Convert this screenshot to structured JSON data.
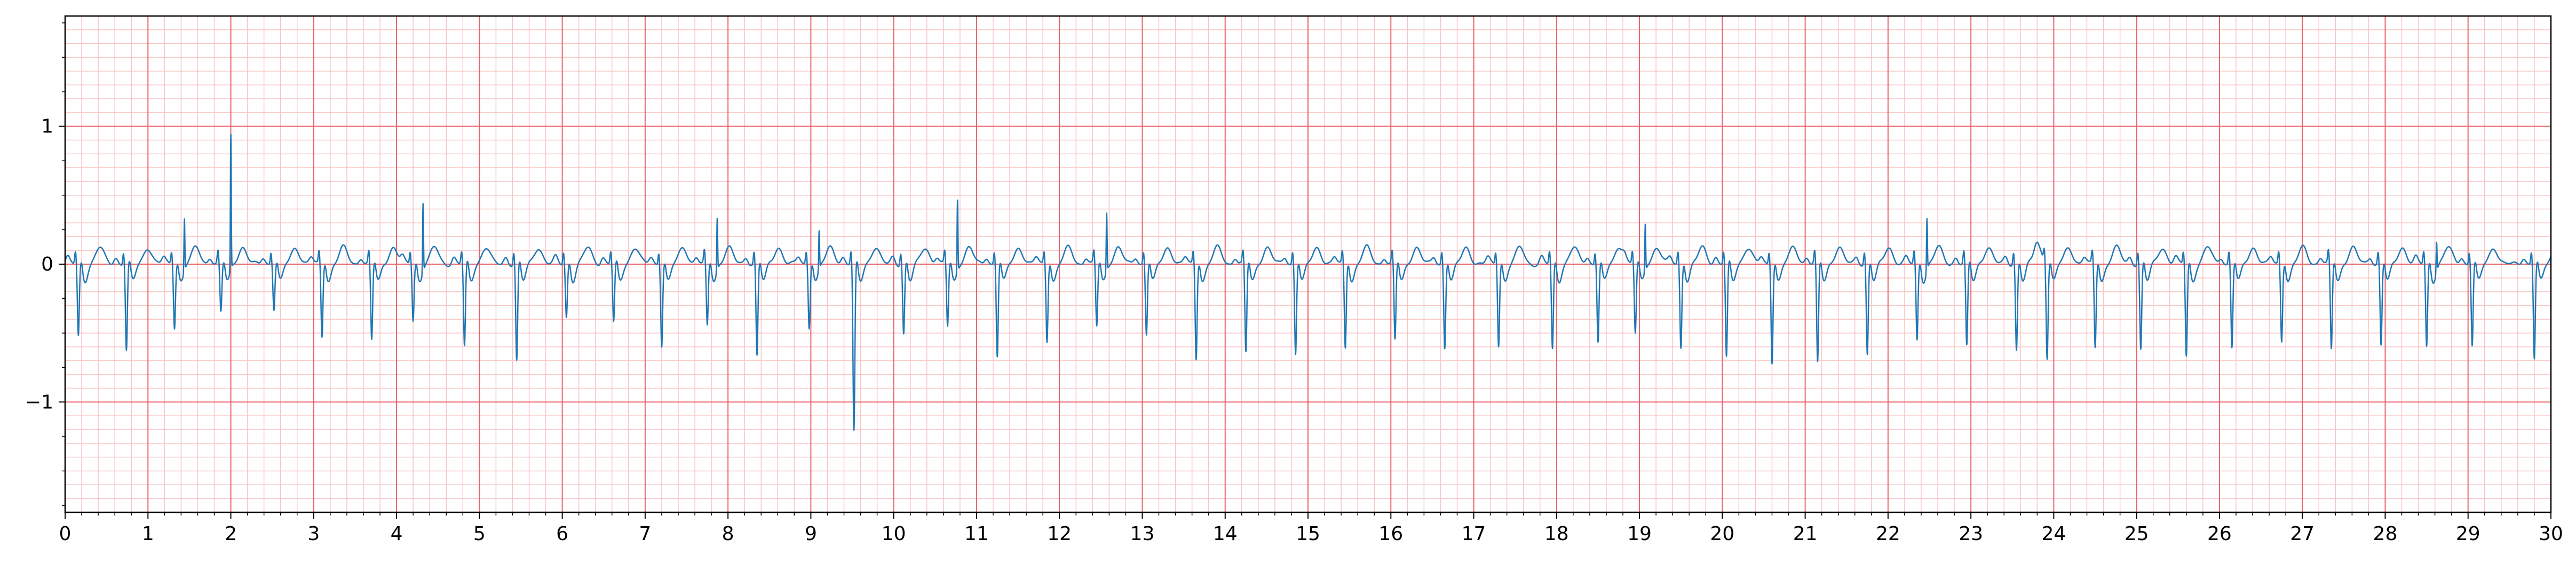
{
  "chart_data": {
    "type": "line",
    "title": "",
    "xlabel": "",
    "ylabel": "",
    "xlim": [
      0,
      30
    ],
    "ylim": [
      -1.8,
      1.8
    ],
    "x_ticks": [
      0,
      1,
      2,
      3,
      4,
      5,
      6,
      7,
      8,
      9,
      10,
      11,
      12,
      13,
      14,
      15,
      16,
      17,
      18,
      19,
      20,
      21,
      22,
      23,
      24,
      25,
      26,
      27,
      28,
      29,
      30
    ],
    "x_tick_labels": [
      "0",
      "1",
      "2",
      "3",
      "4",
      "5",
      "6",
      "7",
      "8",
      "9",
      "10",
      "11",
      "12",
      "13",
      "14",
      "15",
      "16",
      "17",
      "18",
      "19",
      "20",
      "21",
      "22",
      "23",
      "24",
      "25",
      "26",
      "27",
      "28",
      "29",
      "30"
    ],
    "y_ticks": [
      -1,
      0,
      1
    ],
    "y_tick_labels": [
      "−1",
      "0",
      "1"
    ],
    "grid": {
      "major": true,
      "minor": true,
      "major_step_x": 1,
      "minor_step_x": 0.2,
      "major_step_y": 1,
      "minor_step_y": 0.1
    },
    "legend": "none",
    "colors": {
      "trace": "#1f77b4",
      "major_grid": "#e8636b",
      "minor_grid": "#f9c4c4",
      "axes": "#000000"
    },
    "series": [
      {
        "beats": [
          {
            "t": 0.16,
            "amp": -0.52
          },
          {
            "t": 0.74,
            "amp": -0.62
          },
          {
            "t": 1.32,
            "amp": -0.45,
            "spike": 0.38
          },
          {
            "t": 1.88,
            "amp": -0.35,
            "spike": 0.98
          },
          {
            "t": 2.52,
            "amp": -0.32
          },
          {
            "t": 3.1,
            "amp": -0.52
          },
          {
            "t": 3.7,
            "amp": -0.55
          },
          {
            "t": 4.2,
            "amp": -0.4,
            "spike": 0.5
          },
          {
            "t": 4.82,
            "amp": -0.6
          },
          {
            "t": 5.45,
            "amp": -0.7
          },
          {
            "t": 6.05,
            "amp": -0.38
          },
          {
            "t": 6.62,
            "amp": -0.42
          },
          {
            "t": 7.2,
            "amp": -0.58
          },
          {
            "t": 7.75,
            "amp": -0.45,
            "spike": 0.38
          },
          {
            "t": 8.35,
            "amp": -0.66
          },
          {
            "t": 8.98,
            "amp": -0.45,
            "spike": 0.28
          },
          {
            "t": 9.52,
            "amp": -1.22
          },
          {
            "t": 10.12,
            "amp": -0.5
          },
          {
            "t": 10.65,
            "amp": -0.45,
            "spike": 0.52
          },
          {
            "t": 11.25,
            "amp": -0.66
          },
          {
            "t": 11.85,
            "amp": -0.55
          },
          {
            "t": 12.45,
            "amp": -0.45,
            "spike": 0.42
          },
          {
            "t": 13.05,
            "amp": -0.5
          },
          {
            "t": 13.65,
            "amp": -0.68
          },
          {
            "t": 14.25,
            "amp": -0.64
          },
          {
            "t": 14.85,
            "amp": -0.64
          },
          {
            "t": 15.45,
            "amp": -0.6
          },
          {
            "t": 16.05,
            "amp": -0.55
          },
          {
            "t": 16.65,
            "amp": -0.6
          },
          {
            "t": 17.3,
            "amp": -0.58
          },
          {
            "t": 17.95,
            "amp": -0.62
          },
          {
            "t": 18.5,
            "amp": -0.55
          },
          {
            "t": 18.95,
            "amp": -0.5,
            "spike": 0.34
          },
          {
            "t": 19.5,
            "amp": -0.6
          },
          {
            "t": 20.05,
            "amp": -0.68
          },
          {
            "t": 20.6,
            "amp": -0.7
          },
          {
            "t": 21.15,
            "amp": -0.72
          },
          {
            "t": 21.75,
            "amp": -0.65
          },
          {
            "t": 22.35,
            "amp": -0.55,
            "spike": 0.38
          },
          {
            "t": 22.95,
            "amp": -0.6
          },
          {
            "t": 23.55,
            "amp": -0.62
          },
          {
            "t": 23.92,
            "amp": -0.68
          },
          {
            "t": 24.5,
            "amp": -0.6
          },
          {
            "t": 25.05,
            "amp": -0.62
          },
          {
            "t": 25.6,
            "amp": -0.66
          },
          {
            "t": 26.15,
            "amp": -0.6
          },
          {
            "t": 26.75,
            "amp": -0.55
          },
          {
            "t": 27.35,
            "amp": -0.62
          },
          {
            "t": 27.95,
            "amp": -0.58
          },
          {
            "t": 28.5,
            "amp": -0.6,
            "spike": 0.22
          },
          {
            "t": 29.05,
            "amp": -0.58
          },
          {
            "t": 29.8,
            "amp": -0.68
          }
        ]
      }
    ]
  }
}
